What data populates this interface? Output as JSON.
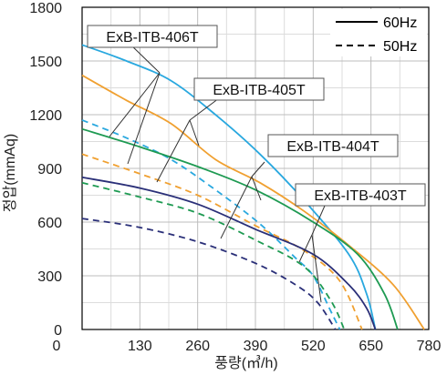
{
  "chart_data": {
    "type": "line",
    "xlabel": "풍량(㎥/h)",
    "ylabel": "정압(mmAq)",
    "xlim": [
      0,
      780
    ],
    "ylim": [
      0,
      1800
    ],
    "xticks": [
      "0",
      "130",
      "260",
      "390",
      "520",
      "650",
      "780"
    ],
    "yticks": [
      "0",
      "300",
      "600",
      "900",
      "1200",
      "1500",
      "1800"
    ],
    "grid": true,
    "legend_position": "top-right",
    "legend": [
      {
        "label": "60Hz",
        "style": "solid"
      },
      {
        "label": "50Hz",
        "style": "dashed"
      }
    ],
    "annotations": [
      "ExB-ITB-406T",
      "ExB-ITB-405T",
      "ExB-ITB-404T",
      "ExB-ITB-403T"
    ],
    "series": [
      {
        "model": "ExB-ITB-406T",
        "freq": "60Hz",
        "color": "#29a8df",
        "dash": false,
        "points": [
          [
            0,
            1590
          ],
          [
            100,
            1500
          ],
          [
            200,
            1390
          ],
          [
            300,
            1200
          ],
          [
            400,
            980
          ],
          [
            500,
            720
          ],
          [
            600,
            420
          ],
          [
            640,
            200
          ],
          [
            660,
            0
          ]
        ]
      },
      {
        "model": "ExB-ITB-406T",
        "freq": "50Hz",
        "color": "#29a8df",
        "dash": true,
        "points": [
          [
            0,
            1170
          ],
          [
            100,
            1070
          ],
          [
            200,
            950
          ],
          [
            300,
            780
          ],
          [
            400,
            590
          ],
          [
            480,
            400
          ],
          [
            520,
            300
          ],
          [
            560,
            100
          ],
          [
            580,
            0
          ]
        ]
      },
      {
        "model": "ExB-ITB-405T",
        "freq": "60Hz",
        "color": "#f0a030",
        "dash": false,
        "points": [
          [
            0,
            1420
          ],
          [
            100,
            1280
          ],
          [
            200,
            1150
          ],
          [
            300,
            950
          ],
          [
            400,
            820
          ],
          [
            500,
            660
          ],
          [
            600,
            470
          ],
          [
            700,
            250
          ],
          [
            770,
            0
          ]
        ]
      },
      {
        "model": "ExB-ITB-405T",
        "freq": "50Hz",
        "color": "#f0a030",
        "dash": true,
        "points": [
          [
            0,
            980
          ],
          [
            130,
            870
          ],
          [
            260,
            750
          ],
          [
            390,
            580
          ],
          [
            500,
            440
          ],
          [
            580,
            270
          ],
          [
            630,
            0
          ]
        ]
      },
      {
        "model": "ExB-ITB-404T",
        "freq": "60Hz",
        "color": "#1e9a52",
        "dash": false,
        "points": [
          [
            0,
            1120
          ],
          [
            130,
            1020
          ],
          [
            260,
            910
          ],
          [
            390,
            780
          ],
          [
            520,
            600
          ],
          [
            620,
            420
          ],
          [
            680,
            200
          ],
          [
            710,
            0
          ]
        ]
      },
      {
        "model": "ExB-ITB-404T",
        "freq": "50Hz",
        "color": "#1e9a52",
        "dash": true,
        "points": [
          [
            0,
            820
          ],
          [
            130,
            740
          ],
          [
            260,
            650
          ],
          [
            390,
            500
          ],
          [
            500,
            350
          ],
          [
            560,
            160
          ],
          [
            590,
            0
          ]
        ]
      },
      {
        "model": "ExB-ITB-403T",
        "freq": "60Hz",
        "color": "#2a2f78",
        "dash": false,
        "points": [
          [
            0,
            850
          ],
          [
            130,
            790
          ],
          [
            260,
            700
          ],
          [
            390,
            560
          ],
          [
            520,
            420
          ],
          [
            600,
            250
          ],
          [
            640,
            120
          ],
          [
            660,
            0
          ]
        ]
      },
      {
        "model": "ExB-ITB-403T",
        "freq": "50Hz",
        "color": "#2a2f78",
        "dash": true,
        "points": [
          [
            0,
            620
          ],
          [
            130,
            570
          ],
          [
            260,
            490
          ],
          [
            390,
            370
          ],
          [
            480,
            250
          ],
          [
            530,
            150
          ],
          [
            570,
            0
          ]
        ]
      }
    ]
  }
}
